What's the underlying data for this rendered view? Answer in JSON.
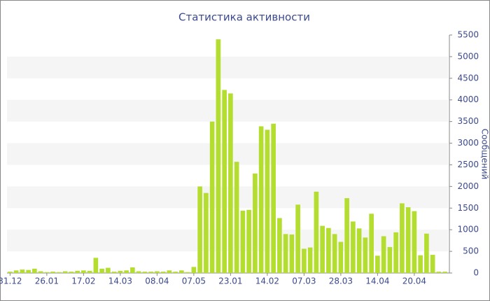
{
  "chart_data": {
    "type": "bar",
    "title": "Статистика активности",
    "y_label": "Сообщений",
    "categories": [
      "31.12",
      null,
      null,
      null,
      null,
      null,
      "26.01",
      null,
      null,
      null,
      null,
      null,
      "17.02",
      null,
      null,
      null,
      null,
      null,
      "14.03",
      null,
      null,
      null,
      null,
      null,
      "08.04",
      null,
      null,
      null,
      null,
      null,
      "07.05",
      null,
      null,
      null,
      null,
      null,
      "23.01",
      null,
      null,
      null,
      null,
      null,
      "14.02",
      null,
      null,
      null,
      null,
      null,
      "07.03",
      null,
      null,
      null,
      null,
      null,
      "28.03",
      null,
      null,
      null,
      null,
      null,
      "14.04",
      null,
      null,
      null,
      null,
      null,
      "20.04",
      null,
      null,
      null,
      null,
      null
    ],
    "values": [
      30,
      60,
      80,
      70,
      100,
      40,
      20,
      30,
      20,
      40,
      30,
      50,
      60,
      50,
      350,
      100,
      120,
      30,
      50,
      60,
      130,
      40,
      30,
      30,
      40,
      30,
      60,
      30,
      60,
      20,
      140,
      2000,
      1850,
      3500,
      5400,
      4230,
      4150,
      2570,
      1440,
      1460,
      2300,
      3390,
      3310,
      3450,
      1270,
      900,
      890,
      1580,
      560,
      590,
      1880,
      1090,
      1040,
      900,
      720,
      1730,
      1190,
      1030,
      820,
      1370,
      400,
      850,
      600,
      940,
      1610,
      1520,
      1430,
      410,
      910,
      420,
      30,
      30
    ],
    "color": "#b4de2f",
    "band_color": "#f5f5f5",
    "ylim": [
      0,
      5500
    ],
    "yticks": [
      0,
      500,
      1000,
      1500,
      2000,
      2500,
      3000,
      3500,
      4000,
      4500,
      5000,
      5500
    ],
    "grid": true
  }
}
